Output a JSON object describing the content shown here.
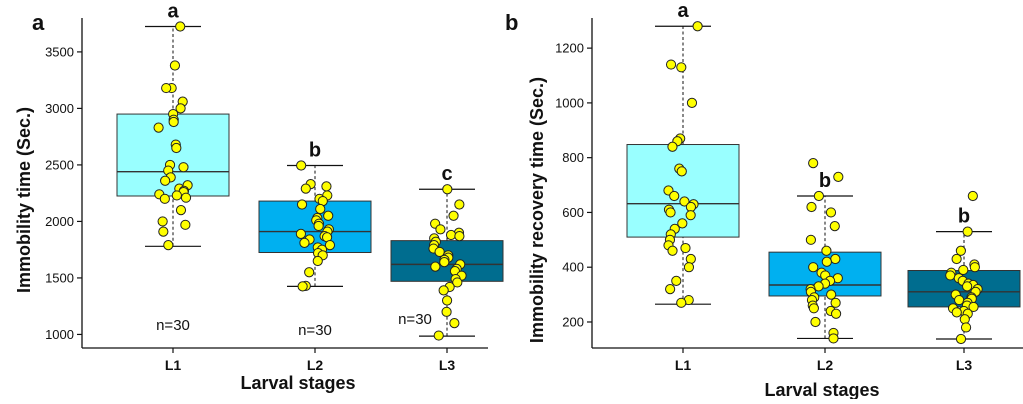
{
  "chart_data": [
    {
      "panel_label": "a",
      "type": "box",
      "ylabel": "Immobility time (Sec.)",
      "xlabel": "Larval stages",
      "ylim": [
        880,
        3800
      ],
      "yticks": [
        1000,
        1500,
        2000,
        2500,
        3000,
        3500
      ],
      "categories": [
        "L1",
        "L2",
        "L3"
      ],
      "colors": [
        "#99ffff",
        "#00b0f0",
        "#006d8f"
      ],
      "boxes": [
        {
          "min": 1780,
          "q1": 2225,
          "median": 2440,
          "q3": 2950,
          "max": 3725
        },
        {
          "min": 1425,
          "q1": 1725,
          "median": 1910,
          "q3": 2180,
          "max": 2495
        },
        {
          "min": 985,
          "q1": 1470,
          "median": 1620,
          "q3": 1830,
          "max": 2285
        }
      ],
      "significance": [
        "a",
        "b",
        "c"
      ],
      "n_labels": [
        "n=30",
        "n=30",
        "n=30"
      ],
      "points": [
        [
          3725,
          3380,
          3180,
          3180,
          3060,
          3000,
          2950,
          2900,
          2880,
          2830,
          2680,
          2650,
          2500,
          2480,
          2450,
          2390,
          2360,
          2320,
          2290,
          2270,
          2260,
          2240,
          2230,
          2210,
          2200,
          2100,
          2000,
          1970,
          1910,
          1790
        ],
        [
          2495,
          2330,
          2310,
          2290,
          2230,
          2200,
          2180,
          2150,
          2110,
          2050,
          2030,
          2010,
          1980,
          1960,
          1930,
          1910,
          1890,
          1870,
          1860,
          1840,
          1810,
          1790,
          1770,
          1750,
          1720,
          1700,
          1650,
          1550,
          1430,
          1425
        ],
        [
          2285,
          2150,
          2050,
          1980,
          1930,
          1900,
          1880,
          1870,
          1850,
          1820,
          1790,
          1760,
          1730,
          1700,
          1680,
          1660,
          1640,
          1620,
          1600,
          1580,
          1560,
          1520,
          1490,
          1460,
          1420,
          1390,
          1300,
          1200,
          1100,
          990
        ]
      ]
    },
    {
      "panel_label": "b",
      "type": "box",
      "ylabel": "Immobility recovery time (Sec.)",
      "xlabel": "Larval stages",
      "ylim": [
        105,
        1310
      ],
      "yticks": [
        200,
        400,
        600,
        800,
        1000,
        1200
      ],
      "categories": [
        "L1",
        "L2",
        "L3"
      ],
      "colors": [
        "#99ffff",
        "#00b0f0",
        "#006d8f"
      ],
      "boxes": [
        {
          "min": 265,
          "q1": 510,
          "median": 632,
          "q3": 848,
          "max": 1280
        },
        {
          "min": 140,
          "q1": 295,
          "median": 335,
          "q3": 455,
          "max": 660
        },
        {
          "min": 138,
          "q1": 255,
          "median": 310,
          "q3": 388,
          "max": 530
        }
      ],
      "significance": [
        "a",
        "b",
        "b"
      ],
      "n_labels": [],
      "points": [
        [
          1280,
          1140,
          1130,
          1000,
          870,
          860,
          840,
          760,
          750,
          680,
          660,
          640,
          630,
          620,
          610,
          600,
          590,
          560,
          540,
          520,
          500,
          480,
          470,
          460,
          430,
          400,
          350,
          320,
          280,
          270
        ],
        [
          780,
          730,
          660,
          620,
          600,
          550,
          500,
          460,
          430,
          420,
          400,
          380,
          370,
          360,
          350,
          340,
          330,
          320,
          310,
          300,
          290,
          280,
          270,
          260,
          250,
          240,
          230,
          200,
          160,
          140
        ],
        [
          660,
          530,
          460,
          430,
          410,
          400,
          390,
          380,
          370,
          360,
          350,
          340,
          335,
          330,
          320,
          310,
          300,
          290,
          285,
          280,
          270,
          260,
          255,
          250,
          240,
          235,
          230,
          210,
          180,
          138
        ]
      ]
    }
  ]
}
